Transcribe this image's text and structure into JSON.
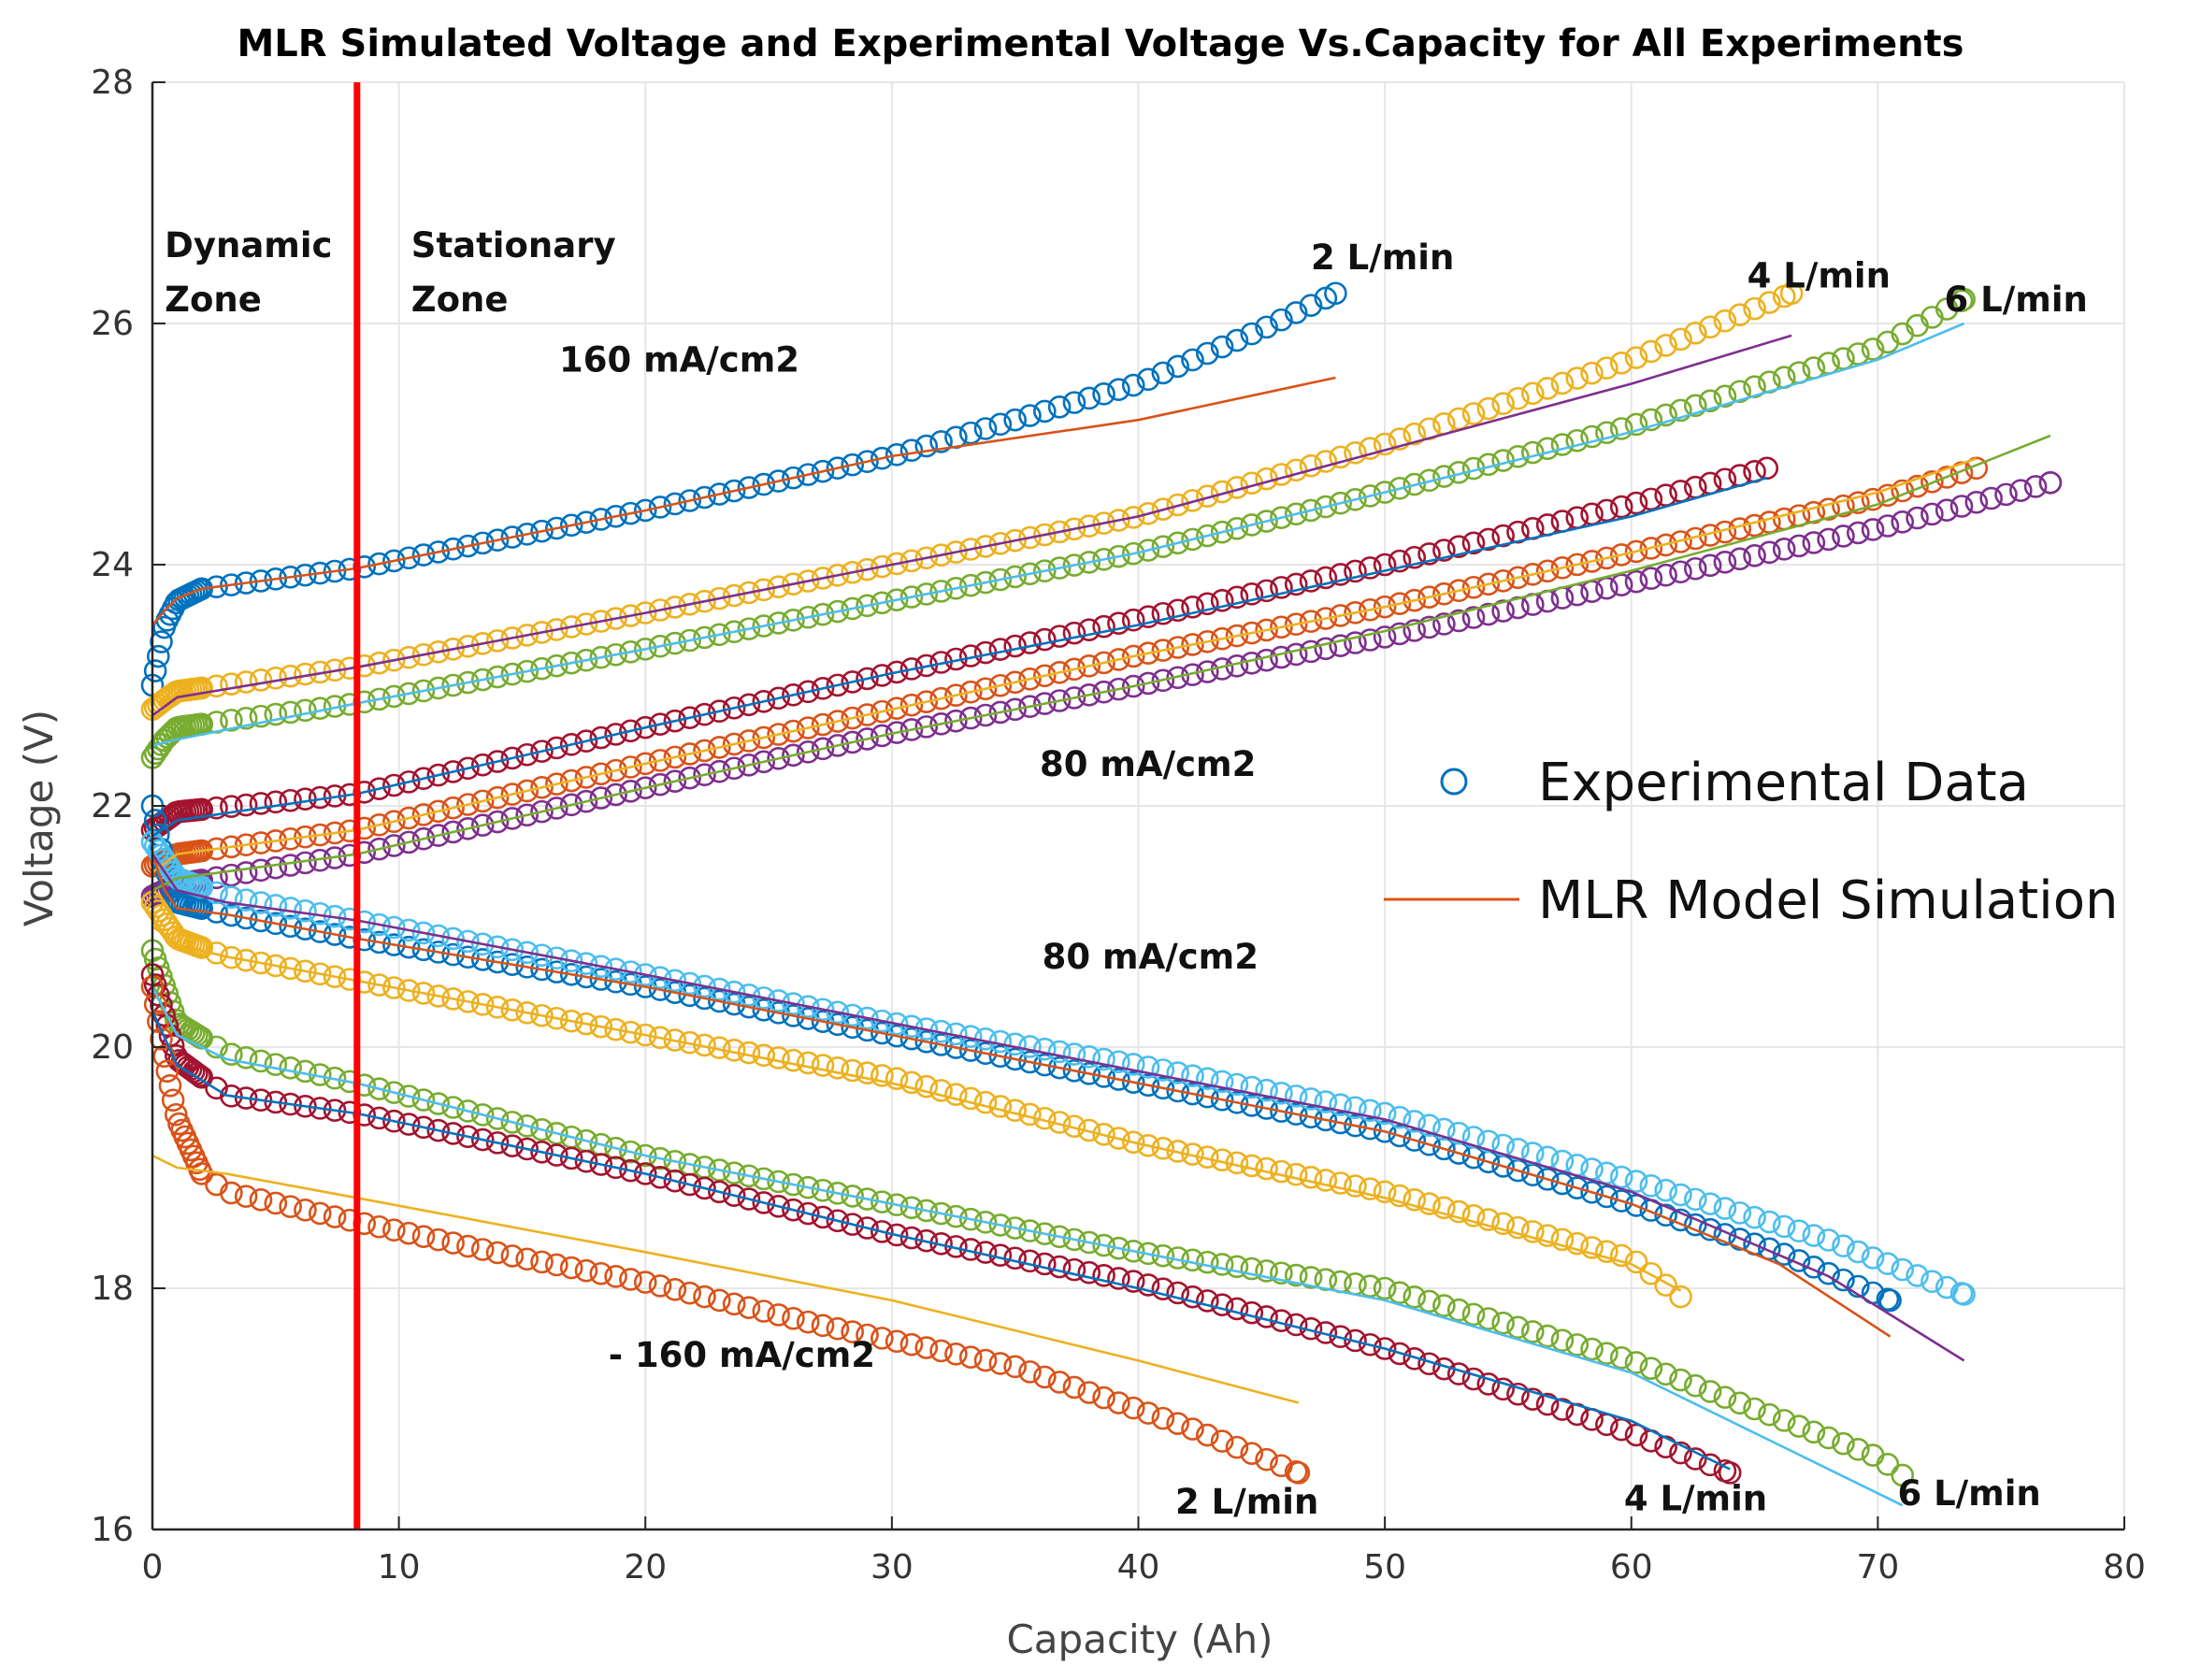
{
  "chart_data": {
    "type": "scatter",
    "title": "MLR Simulated Voltage and Experimental Voltage Vs.Capacity for All Experiments",
    "xlabel": "Capacity (Ah)",
    "ylabel": "Voltage (V)",
    "xlim": [
      0,
      80
    ],
    "ylim": [
      16,
      28
    ],
    "xticks": [
      "0",
      "10",
      "20",
      "30",
      "40",
      "50",
      "60",
      "70",
      "80"
    ],
    "yticks": [
      "16",
      "18",
      "20",
      "22",
      "24",
      "26",
      "28"
    ],
    "grid": true,
    "legend_position": "right",
    "legend": [
      {
        "label": "Experimental Data",
        "marker": "circle",
        "color": "#0072BD"
      },
      {
        "label": "MLR Model Simulation",
        "marker": "line",
        "color": "#D95319"
      }
    ],
    "zone_divider": {
      "x": 8.3,
      "color": "#FF0000"
    },
    "annotations": [
      {
        "text": "Dynamic",
        "x": 0.5,
        "y": 26.55
      },
      {
        "text": "Zone",
        "x": 0.5,
        "y": 26.1
      },
      {
        "text": "Stationary",
        "x": 10.5,
        "y": 26.55
      },
      {
        "text": "Zone",
        "x": 10.5,
        "y": 26.1
      },
      {
        "text": "2 L/min",
        "x": 47,
        "y": 26.45
      },
      {
        "text": "4 L/min",
        "x": 64.7,
        "y": 26.3
      },
      {
        "text": "6 L/min",
        "x": 72.7,
        "y": 26.1
      },
      {
        "text": "160 mA/cm2",
        "x": 16.5,
        "y": 25.6
      },
      {
        "text": "80 mA/cm2",
        "x": 36,
        "y": 22.25
      },
      {
        "text": "80 mA/cm2",
        "x": 36.1,
        "y": 20.65
      },
      {
        "text": "- 160 mA/cm2",
        "x": 18.5,
        "y": 17.35
      },
      {
        "text": "2 L/min",
        "x": 41.5,
        "y": 16.13
      },
      {
        "text": "4 L/min",
        "x": 59.7,
        "y": 16.16
      },
      {
        "text": "6 L/min",
        "x": 70.8,
        "y": 16.2
      }
    ],
    "series": [
      {
        "color": "#0072BD",
        "fit_color": "#D95319",
        "direction": "charge",
        "exp": [
          [
            0,
            23.0
          ],
          [
            0.5,
            23.5
          ],
          [
            1,
            23.7
          ],
          [
            2,
            23.8
          ],
          [
            8.3,
            23.97
          ],
          [
            20,
            24.45
          ],
          [
            30,
            24.9
          ],
          [
            40,
            25.5
          ],
          [
            45,
            25.95
          ],
          [
            48,
            26.25
          ]
        ],
        "fit": [
          [
            0,
            23.5
          ],
          [
            0.5,
            23.62
          ],
          [
            1,
            23.72
          ],
          [
            2,
            23.8
          ],
          [
            8.3,
            23.97
          ],
          [
            20,
            24.45
          ],
          [
            30,
            24.9
          ],
          [
            40,
            25.2
          ],
          [
            48,
            25.55
          ]
        ]
      },
      {
        "color": "#EDB120",
        "fit_color": "#7E2F8E",
        "direction": "charge",
        "exp": [
          [
            0,
            22.8
          ],
          [
            0.5,
            22.88
          ],
          [
            1,
            22.95
          ],
          [
            8.3,
            23.15
          ],
          [
            20,
            23.6
          ],
          [
            30,
            24.0
          ],
          [
            40,
            24.4
          ],
          [
            50,
            25.0
          ],
          [
            60,
            25.7
          ],
          [
            66.5,
            26.25
          ]
        ],
        "fit": [
          [
            0,
            22.75
          ],
          [
            1,
            22.9
          ],
          [
            8.3,
            23.15
          ],
          [
            20,
            23.6
          ],
          [
            30,
            24.0
          ],
          [
            40,
            24.4
          ],
          [
            50,
            24.95
          ],
          [
            60,
            25.5
          ],
          [
            66.5,
            25.9
          ]
        ]
      },
      {
        "color": "#77AC30",
        "fit_color": "#4DBEEE",
        "direction": "charge",
        "exp": [
          [
            0,
            22.4
          ],
          [
            0.5,
            22.55
          ],
          [
            1,
            22.65
          ],
          [
            8.3,
            22.85
          ],
          [
            20,
            23.3
          ],
          [
            30,
            23.7
          ],
          [
            40,
            24.1
          ],
          [
            50,
            24.6
          ],
          [
            60,
            25.15
          ],
          [
            70,
            25.8
          ],
          [
            73.5,
            26.2
          ]
        ],
        "fit": [
          [
            0,
            22.5
          ],
          [
            1,
            22.55
          ],
          [
            8.3,
            22.85
          ],
          [
            20,
            23.3
          ],
          [
            30,
            23.7
          ],
          [
            40,
            24.1
          ],
          [
            50,
            24.6
          ],
          [
            60,
            25.1
          ],
          [
            70,
            25.7
          ],
          [
            73.5,
            26.0
          ]
        ]
      },
      {
        "color": "#A2142F",
        "fit_color": "#0072BD",
        "direction": "charge",
        "exp": [
          [
            0,
            21.8
          ],
          [
            1,
            21.95
          ],
          [
            8.3,
            22.1
          ],
          [
            20,
            22.65
          ],
          [
            30,
            23.1
          ],
          [
            40,
            23.55
          ],
          [
            50,
            24.0
          ],
          [
            60,
            24.5
          ],
          [
            65.5,
            24.8
          ]
        ],
        "fit": [
          [
            0,
            21.75
          ],
          [
            1,
            21.88
          ],
          [
            8.3,
            22.1
          ],
          [
            20,
            22.65
          ],
          [
            30,
            23.1
          ],
          [
            40,
            23.5
          ],
          [
            50,
            23.95
          ],
          [
            60,
            24.4
          ],
          [
            65.5,
            24.72
          ]
        ]
      },
      {
        "color": "#D95319",
        "fit_color": "#EDB120",
        "direction": "charge",
        "exp": [
          [
            0,
            21.5
          ],
          [
            1,
            21.6
          ],
          [
            8.3,
            21.8
          ],
          [
            20,
            22.35
          ],
          [
            30,
            22.8
          ],
          [
            40,
            23.25
          ],
          [
            50,
            23.65
          ],
          [
            60,
            24.1
          ],
          [
            70,
            24.55
          ],
          [
            74,
            24.8
          ]
        ],
        "fit": [
          [
            0,
            21.45
          ],
          [
            1,
            21.6
          ],
          [
            8.3,
            21.8
          ],
          [
            20,
            22.35
          ],
          [
            30,
            22.8
          ],
          [
            40,
            23.25
          ],
          [
            50,
            23.65
          ],
          [
            60,
            24.1
          ],
          [
            70,
            24.6
          ],
          [
            74,
            24.88
          ]
        ]
      },
      {
        "color": "#7E2F8E",
        "fit_color": "#77AC30",
        "direction": "charge",
        "exp": [
          [
            0,
            21.25
          ],
          [
            1,
            21.35
          ],
          [
            8.3,
            21.6
          ],
          [
            20,
            22.15
          ],
          [
            30,
            22.6
          ],
          [
            40,
            23.0
          ],
          [
            50,
            23.4
          ],
          [
            60,
            23.85
          ],
          [
            70,
            24.3
          ],
          [
            77,
            24.68
          ]
        ],
        "fit": [
          [
            0,
            21.3
          ],
          [
            1,
            21.4
          ],
          [
            8.3,
            21.6
          ],
          [
            20,
            22.15
          ],
          [
            30,
            22.6
          ],
          [
            40,
            23.0
          ],
          [
            50,
            23.45
          ],
          [
            60,
            23.95
          ],
          [
            70,
            24.5
          ],
          [
            77,
            25.07
          ]
        ]
      },
      {
        "color": "#0072BD",
        "fit_color": "#D95319",
        "direction": "discharge",
        "exp": [
          [
            0,
            22.0
          ],
          [
            0.5,
            21.5
          ],
          [
            1,
            21.2
          ],
          [
            3,
            21.1
          ],
          [
            8.3,
            20.9
          ],
          [
            20,
            20.5
          ],
          [
            30,
            20.1
          ],
          [
            40,
            19.7
          ],
          [
            50,
            19.3
          ],
          [
            60,
            18.7
          ],
          [
            66,
            18.3
          ],
          [
            70.5,
            17.9
          ]
        ],
        "fit": [
          [
            0,
            21.6
          ],
          [
            0.5,
            21.3
          ],
          [
            1,
            21.15
          ],
          [
            3,
            21.1
          ],
          [
            8.3,
            20.9
          ],
          [
            20,
            20.5
          ],
          [
            30,
            20.1
          ],
          [
            40,
            19.7
          ],
          [
            50,
            19.3
          ],
          [
            60,
            18.7
          ],
          [
            66,
            18.2
          ],
          [
            70.5,
            17.6
          ]
        ]
      },
      {
        "color": "#4DBEEE",
        "fit_color": "#7E2F8E",
        "direction": "discharge",
        "exp": [
          [
            0,
            21.7
          ],
          [
            1,
            21.4
          ],
          [
            3,
            21.25
          ],
          [
            8.3,
            21.05
          ],
          [
            20,
            20.6
          ],
          [
            30,
            20.2
          ],
          [
            40,
            19.85
          ],
          [
            50,
            19.45
          ],
          [
            60,
            18.9
          ],
          [
            68,
            18.4
          ],
          [
            73.5,
            17.95
          ]
        ],
        "fit": [
          [
            0,
            21.6
          ],
          [
            1,
            21.3
          ],
          [
            3,
            21.2
          ],
          [
            8.3,
            21.05
          ],
          [
            20,
            20.6
          ],
          [
            30,
            20.2
          ],
          [
            40,
            19.8
          ],
          [
            50,
            19.4
          ],
          [
            60,
            18.8
          ],
          [
            68,
            18.1
          ],
          [
            73.5,
            17.4
          ]
        ]
      },
      {
        "color": "#EDB120",
        "fit_color": "#EDB120",
        "direction": "discharge",
        "exp": [
          [
            0,
            21.2
          ],
          [
            1,
            20.9
          ],
          [
            3,
            20.75
          ],
          [
            8.3,
            20.55
          ],
          [
            20,
            20.1
          ],
          [
            30,
            19.75
          ],
          [
            40,
            19.2
          ],
          [
            50,
            18.8
          ],
          [
            60,
            18.25
          ],
          [
            62,
            17.93
          ]
        ],
        "fit": [
          [
            0,
            21.0
          ],
          [
            1,
            20.85
          ],
          [
            3,
            20.75
          ],
          [
            8.3,
            20.55
          ],
          [
            20,
            20.1
          ],
          [
            30,
            19.7
          ],
          [
            40,
            19.2
          ],
          [
            50,
            18.75
          ],
          [
            60,
            18.2
          ],
          [
            62,
            17.98
          ]
        ]
      },
      {
        "color": "#77AC30",
        "fit_color": "#4DBEEE",
        "direction": "discharge",
        "exp": [
          [
            0,
            20.8
          ],
          [
            1,
            20.2
          ],
          [
            3,
            19.95
          ],
          [
            8.3,
            19.7
          ],
          [
            20,
            19.1
          ],
          [
            30,
            18.7
          ],
          [
            40,
            18.3
          ],
          [
            50,
            18.0
          ],
          [
            60,
            17.4
          ],
          [
            70,
            16.6
          ],
          [
            71,
            16.45
          ]
        ],
        "fit": [
          [
            0,
            20.5
          ],
          [
            1,
            20.1
          ],
          [
            3,
            19.9
          ],
          [
            8.3,
            19.7
          ],
          [
            20,
            19.1
          ],
          [
            30,
            18.7
          ],
          [
            40,
            18.3
          ],
          [
            50,
            17.9
          ],
          [
            60,
            17.3
          ],
          [
            70,
            16.3
          ],
          [
            71,
            16.2
          ]
        ]
      },
      {
        "color": "#A2142F",
        "fit_color": "#0072BD",
        "direction": "discharge",
        "exp": [
          [
            0,
            20.6
          ],
          [
            1,
            19.9
          ],
          [
            3,
            19.6
          ],
          [
            8.3,
            19.45
          ],
          [
            20,
            18.95
          ],
          [
            30,
            18.45
          ],
          [
            40,
            18.05
          ],
          [
            50,
            17.5
          ],
          [
            60,
            16.8
          ],
          [
            64,
            16.47
          ]
        ],
        "fit": [
          [
            0,
            20.3
          ],
          [
            1,
            19.85
          ],
          [
            3,
            19.6
          ],
          [
            8.3,
            19.45
          ],
          [
            20,
            18.95
          ],
          [
            30,
            18.45
          ],
          [
            40,
            18.0
          ],
          [
            50,
            17.5
          ],
          [
            60,
            16.9
          ],
          [
            64,
            16.5
          ]
        ]
      },
      {
        "color": "#D95319",
        "fit_color": "#EDB120",
        "direction": "discharge",
        "exp": [
          [
            0,
            20.5
          ],
          [
            0.5,
            19.9
          ],
          [
            1,
            19.4
          ],
          [
            2,
            18.95
          ],
          [
            3,
            18.8
          ],
          [
            8.3,
            18.55
          ],
          [
            15,
            18.25
          ],
          [
            20,
            18.05
          ],
          [
            25,
            17.8
          ],
          [
            27,
            17.7
          ],
          [
            35,
            17.35
          ],
          [
            42,
            16.85
          ],
          [
            46.5,
            16.47
          ]
        ],
        "fit": [
          [
            0,
            19.1
          ],
          [
            1,
            19.0
          ],
          [
            3,
            18.95
          ],
          [
            8.3,
            18.75
          ],
          [
            20,
            18.3
          ],
          [
            30,
            17.9
          ],
          [
            40,
            17.4
          ],
          [
            46.5,
            17.05
          ]
        ]
      }
    ]
  }
}
